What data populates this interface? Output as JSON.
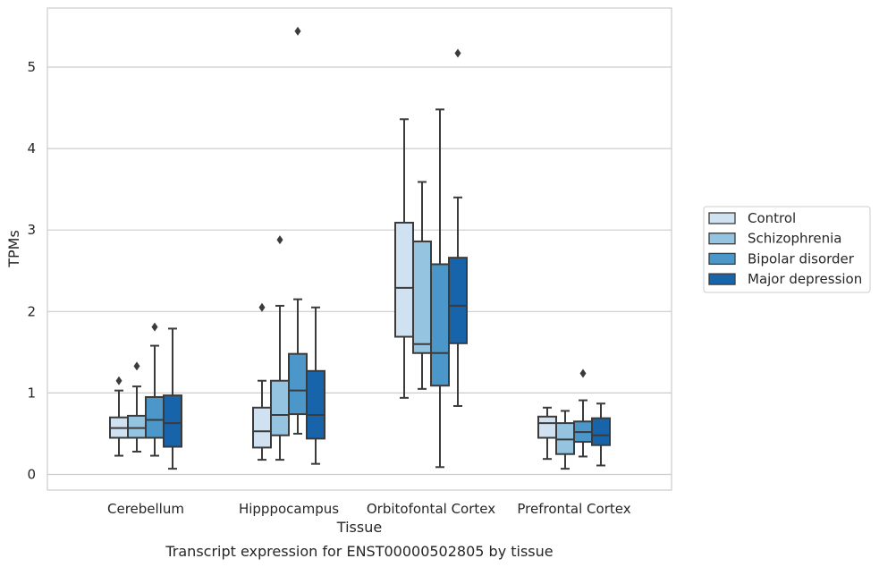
{
  "chart_data": {
    "type": "box",
    "caption": "Transcript expression for ENST00000502805 by tissue",
    "xlabel": "Tissue",
    "ylabel": "TPMs",
    "ylim": [
      -0.18,
      5.75
    ],
    "yticks": [
      0,
      1,
      2,
      3,
      4,
      5
    ],
    "grid": "horizontal",
    "legend_placement": "right",
    "categories": [
      "Cerebellum",
      "Hipppocampus",
      "Orbitofontal Cortex",
      "Prefrontal Cortex"
    ],
    "series": [
      {
        "name": "Control",
        "color": "#d0e1f2",
        "boxes": [
          {
            "whisker_low": 0.23,
            "q1": 0.45,
            "median": 0.57,
            "q3": 0.7,
            "whisker_high": 1.03,
            "outliers": [
              1.15
            ]
          },
          {
            "whisker_low": 0.18,
            "q1": 0.33,
            "median": 0.53,
            "q3": 0.82,
            "whisker_high": 1.15,
            "outliers": [
              2.05
            ]
          },
          {
            "whisker_low": 0.94,
            "q1": 1.69,
            "median": 2.29,
            "q3": 3.09,
            "whisker_high": 4.36,
            "outliers": []
          },
          {
            "whisker_low": 0.19,
            "q1": 0.45,
            "median": 0.63,
            "q3": 0.71,
            "whisker_high": 0.82,
            "outliers": []
          }
        ]
      },
      {
        "name": "Schizophrenia",
        "color": "#94c4df",
        "boxes": [
          {
            "whisker_low": 0.28,
            "q1": 0.45,
            "median": 0.57,
            "q3": 0.72,
            "whisker_high": 1.08,
            "outliers": [
              1.33
            ]
          },
          {
            "whisker_low": 0.18,
            "q1": 0.48,
            "median": 0.73,
            "q3": 1.15,
            "whisker_high": 2.07,
            "outliers": [
              2.88
            ]
          },
          {
            "whisker_low": 1.05,
            "q1": 1.49,
            "median": 1.6,
            "q3": 2.86,
            "whisker_high": 3.59,
            "outliers": []
          },
          {
            "whisker_low": 0.07,
            "q1": 0.25,
            "median": 0.43,
            "q3": 0.63,
            "whisker_high": 0.78,
            "outliers": []
          }
        ]
      },
      {
        "name": "Bipolar disorder",
        "color": "#4b97c9",
        "boxes": [
          {
            "whisker_low": 0.23,
            "q1": 0.45,
            "median": 0.67,
            "q3": 0.95,
            "whisker_high": 1.58,
            "outliers": [
              1.81
            ]
          },
          {
            "whisker_low": 0.5,
            "q1": 0.74,
            "median": 1.03,
            "q3": 1.48,
            "whisker_high": 2.15,
            "outliers": [
              5.44
            ]
          },
          {
            "whisker_low": 0.09,
            "q1": 1.09,
            "median": 1.49,
            "q3": 2.58,
            "whisker_high": 4.48,
            "outliers": []
          },
          {
            "whisker_low": 0.22,
            "q1": 0.4,
            "median": 0.52,
            "q3": 0.65,
            "whisker_high": 0.91,
            "outliers": [
              1.24
            ]
          }
        ]
      },
      {
        "name": "Major depression",
        "color": "#1764ab",
        "boxes": [
          {
            "whisker_low": 0.07,
            "q1": 0.34,
            "median": 0.63,
            "q3": 0.97,
            "whisker_high": 1.79,
            "outliers": []
          },
          {
            "whisker_low": 0.13,
            "q1": 0.44,
            "median": 0.73,
            "q3": 1.27,
            "whisker_high": 2.05,
            "outliers": []
          },
          {
            "whisker_low": 0.84,
            "q1": 1.61,
            "median": 2.07,
            "q3": 2.66,
            "whisker_high": 3.4,
            "outliers": [
              5.17
            ]
          },
          {
            "whisker_low": 0.11,
            "q1": 0.36,
            "median": 0.48,
            "q3": 0.69,
            "whisker_high": 0.87,
            "outliers": []
          }
        ]
      }
    ]
  }
}
